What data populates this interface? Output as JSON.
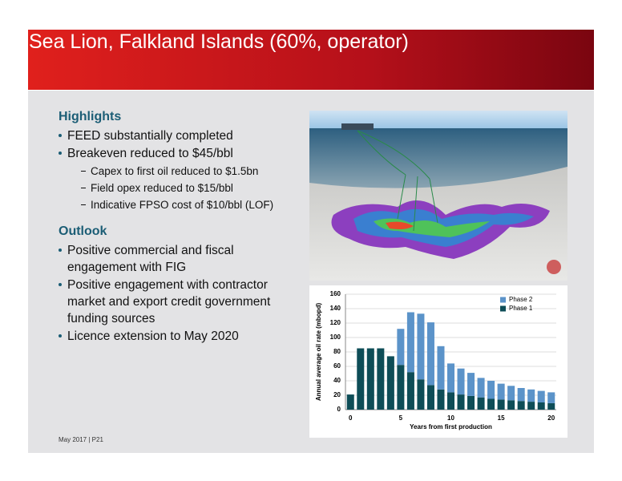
{
  "title": "Sea Lion, Falkland Islands (60%, operator)",
  "sections": [
    {
      "heading": "Highlights",
      "items": [
        {
          "text": "FEED substantially completed",
          "subitems": []
        },
        {
          "text": "Breakeven reduced to $45/bbl",
          "subitems": [
            "Capex to first oil reduced to $1.5bn",
            "Field opex reduced to $15/bbl",
            "Indicative FPSO cost of $10/bbl (LOF)"
          ]
        }
      ]
    },
    {
      "heading": "Outlook",
      "items": [
        {
          "text": "Positive commercial and fiscal engagement with FIG",
          "subitems": []
        },
        {
          "text": "Positive engagement with contractor market and export credit government funding sources",
          "subitems": []
        },
        {
          "text": "Licence extension to May 2020",
          "subitems": []
        }
      ]
    }
  ],
  "footer": "May 2017 | P21",
  "chart_data": {
    "type": "stacked-bar",
    "x": [
      0,
      1,
      2,
      3,
      4,
      5,
      6,
      7,
      8,
      9,
      10,
      11,
      12,
      13,
      14,
      15,
      16,
      17,
      18,
      19,
      20
    ],
    "series": [
      {
        "name": "Phase 1",
        "color": "#0e4d57",
        "values": [
          21,
          85,
          85,
          85,
          74,
          62,
          52,
          42,
          34,
          28,
          24,
          21,
          19,
          17,
          15,
          14,
          13,
          12,
          11,
          10,
          9
        ]
      },
      {
        "name": "Phase 2",
        "color": "#5b93c9",
        "values": [
          0,
          0,
          0,
          0,
          0,
          50,
          83,
          91,
          87,
          60,
          40,
          36,
          32,
          27,
          25,
          22,
          20,
          18,
          17,
          16,
          15
        ]
      }
    ],
    "xlim": [
      -0.5,
      20.5
    ],
    "xticks": [
      0,
      5,
      10,
      15,
      20
    ],
    "ylim": [
      0,
      160
    ],
    "yticks": [
      0,
      20,
      40,
      60,
      80,
      100,
      120,
      140,
      160
    ],
    "x_label": "Years from first production",
    "y_label": "Annual average oil rate (mbopd)",
    "grid": true
  }
}
